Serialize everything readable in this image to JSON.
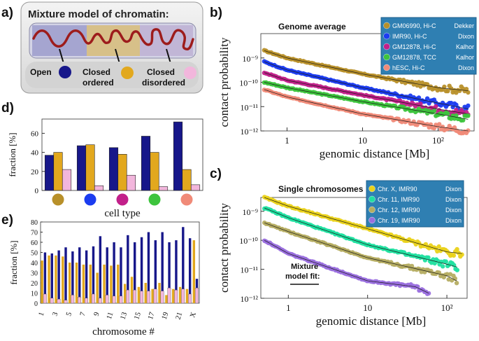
{
  "panels": {
    "a": {
      "letter": "a)",
      "title": "Mixture model of chromatin:",
      "states": [
        {
          "label": "Open",
          "color": "#17178a"
        },
        {
          "label": "Closed\nordered",
          "color": "#e2a81e"
        },
        {
          "label": "Closed\ndisordered",
          "color": "#f2b6dc"
        }
      ]
    },
    "b": {
      "letter": "b)",
      "title": "Genome average",
      "legend": [
        {
          "name": "GM06990, Hi-C",
          "lab": "Dekker",
          "color": "#b8902a"
        },
        {
          "name": "IMR90, Hi-C",
          "lab": "Dixon",
          "color": "#1b3cf0"
        },
        {
          "name": "GM12878, Hi-C",
          "lab": "Kalhor",
          "color": "#c2208a"
        },
        {
          "name": "GM12878, TCC",
          "lab": "Kalhor",
          "color": "#3dc43d"
        },
        {
          "name": "hESC, Hi-C",
          "lab": "Dixon",
          "color": "#f08a78"
        }
      ]
    },
    "c": {
      "letter": "c)",
      "title": "Single chromosomes",
      "fit_label": "Mixture\nmodel fit:",
      "legend": [
        {
          "name": "Chr. X,   IMR90",
          "lab": "Dixon",
          "color": "#ead21a"
        },
        {
          "name": "Chr. 11,  IMR90",
          "lab": "Dixon",
          "color": "#20e0a0"
        },
        {
          "name": "Chr. 12,  IMR90",
          "lab": "Dixon",
          "color": "#b5ad62"
        },
        {
          "name": "Chr. 19,  IMR90",
          "lab": "Dixon",
          "color": "#9a6fde"
        }
      ]
    },
    "d": {
      "letter": "d)"
    },
    "e": {
      "letter": "e)"
    }
  },
  "chart_data": [
    {
      "id": "d",
      "type": "bar",
      "categories": [
        "GM06990",
        "IMR90",
        "GM12878 Hi-C",
        "GM12878 TCC",
        "hESC"
      ],
      "category_marker_colors": [
        "#b8902a",
        "#1b3cf0",
        "#c2208a",
        "#3dc43d",
        "#f08a78"
      ],
      "series": [
        {
          "values": [
            37,
            47,
            45,
            57,
            72
          ],
          "color": "#17178a"
        },
        {
          "values": [
            40,
            48,
            38,
            40,
            22
          ],
          "color": "#e2a81e"
        },
        {
          "values": [
            22,
            5,
            16,
            4,
            6
          ],
          "color": "#f2b6dc"
        }
      ],
      "xlabel": "cell type",
      "ylabel": "fraction [%]",
      "ylim": [
        0,
        75
      ],
      "yticks": [
        "0",
        "20",
        "40",
        "60"
      ]
    },
    {
      "id": "e",
      "type": "bar",
      "categories": [
        "1",
        "2",
        "3",
        "4",
        "5",
        "6",
        "7",
        "8",
        "9",
        "10",
        "11",
        "12",
        "13",
        "14",
        "15",
        "16",
        "17",
        "18",
        "19",
        "20",
        "21",
        "22",
        "X"
      ],
      "tick_labels": [
        "1",
        "3",
        "5",
        "7",
        "9",
        "11",
        "13",
        "15",
        "17",
        "19",
        "21",
        "X"
      ],
      "series": [
        {
          "values": [
            50,
            49,
            52,
            55,
            51,
            55,
            52,
            56,
            66,
            55,
            60,
            55,
            67,
            60,
            65,
            70,
            62,
            70,
            60,
            62,
            75,
            64,
            24
          ],
          "color": "#17178a"
        },
        {
          "values": [
            42,
            47,
            47,
            46,
            40,
            40,
            38,
            38,
            30,
            38,
            37,
            38,
            19,
            26,
            16,
            20,
            14,
            20,
            8,
            14,
            16,
            14,
            62
          ],
          "color": "#e2a81e"
        },
        {
          "values": [
            9,
            5,
            4,
            3,
            8,
            6,
            5,
            9,
            5,
            8,
            7,
            7,
            13,
            13,
            12,
            12,
            14,
            12,
            15,
            13,
            14,
            9,
            15
          ],
          "color": "#f2b6dc"
        }
      ],
      "xlabel": "chromosome #",
      "ylabel": "fraction [%]",
      "ylim": [
        0,
        80
      ],
      "yticks": [
        "0",
        "10",
        "20",
        "30",
        "40",
        "50",
        "60",
        "70",
        "80"
      ]
    },
    {
      "id": "b",
      "type": "scatter",
      "scale": "log-log",
      "xlabel": "genomic distance [Mb]",
      "ylabel": "contact probability",
      "xlim": [
        0.45,
        300
      ],
      "ylim": [
        1e-12,
        1e-08
      ],
      "xticks": [
        {
          "v": 1,
          "t": "1"
        },
        {
          "v": 10,
          "t": "10"
        },
        {
          "v": 100,
          "t": "10²"
        }
      ],
      "yticks": [
        {
          "v": 1e-09,
          "t": "10⁻⁹"
        },
        {
          "v": 1e-10,
          "t": "10⁻¹⁰"
        },
        {
          "v": 1e-11,
          "t": "10⁻¹¹"
        },
        {
          "v": 1e-12,
          "t": "10⁻¹²"
        }
      ],
      "series": [
        {
          "name": "GM06990, Hi-C",
          "color": "#b8902a",
          "points": [
            [
              0.5,
              2e-09
            ],
            [
              1,
              1e-09
            ],
            [
              10,
              2.2e-10
            ],
            [
              100,
              6e-11
            ],
            [
              250,
              4.5e-11
            ]
          ]
        },
        {
          "name": "IMR90, Hi-C",
          "color": "#1b3cf0",
          "points": [
            [
              0.5,
              7e-10
            ],
            [
              1,
              3.2e-10
            ],
            [
              10,
              6e-11
            ],
            [
              100,
              1.4e-11
            ],
            [
              250,
              8e-12
            ]
          ]
        },
        {
          "name": "GM12878, Hi-C",
          "color": "#c2208a",
          "points": [
            [
              0.5,
              2.5e-10
            ],
            [
              1,
              1.2e-10
            ],
            [
              10,
              3e-11
            ],
            [
              100,
              8e-12
            ],
            [
              250,
              5e-12
            ]
          ]
        },
        {
          "name": "GM12878, TCC",
          "color": "#3dc43d",
          "points": [
            [
              0.5,
              1e-10
            ],
            [
              1,
              6e-11
            ],
            [
              10,
              1.6e-11
            ],
            [
              100,
              5e-12
            ],
            [
              250,
              3e-12
            ]
          ]
        },
        {
          "name": "hESC, Hi-C",
          "color": "#f08a78",
          "points": [
            [
              0.5,
              5e-11
            ],
            [
              1,
              2.5e-11
            ],
            [
              10,
              5e-12
            ],
            [
              100,
              1.5e-12
            ],
            [
              250,
              1e-12
            ]
          ]
        }
      ]
    },
    {
      "id": "c",
      "type": "scatter",
      "scale": "log-log",
      "xlabel": "genomic distance [Mb]",
      "ylabel": "contact probability",
      "xlim": [
        0.45,
        180
      ],
      "ylim": [
        1e-12,
        3e-09
      ],
      "xticks": [
        {
          "v": 1,
          "t": "1"
        },
        {
          "v": 10,
          "t": "10"
        },
        {
          "v": 100,
          "t": "10²"
        }
      ],
      "yticks": [
        {
          "v": 1e-09,
          "t": "10⁻⁹"
        },
        {
          "v": 1e-10,
          "t": "10⁻¹⁰"
        },
        {
          "v": 1e-11,
          "t": "10⁻¹¹"
        },
        {
          "v": 1e-12,
          "t": "10⁻¹²"
        }
      ],
      "series": [
        {
          "name": "Chr. X, IMR90",
          "color": "#ead21a",
          "points": [
            [
              0.5,
              3e-09
            ],
            [
              1,
              1.5e-09
            ],
            [
              10,
              2.5e-10
            ],
            [
              100,
              4e-11
            ],
            [
              155,
              3.5e-11
            ]
          ]
        },
        {
          "name": "Chr. 11, IMR90",
          "color": "#20e0a0",
          "points": [
            [
              0.5,
              1.3e-09
            ],
            [
              1,
              6e-10
            ],
            [
              10,
              7e-11
            ],
            [
              100,
              1.5e-11
            ],
            [
              135,
              1.2e-11
            ]
          ]
        },
        {
          "name": "Chr. 12, IMR90",
          "color": "#b5ad62",
          "points": [
            [
              0.5,
              4e-10
            ],
            [
              1,
              2e-10
            ],
            [
              10,
              2.5e-11
            ],
            [
              100,
              6e-12
            ],
            [
              133,
              4e-12
            ]
          ]
        },
        {
          "name": "Chr. 19, IMR90",
          "color": "#9a6fde",
          "points": [
            [
              0.5,
              1e-10
            ],
            [
              1,
              3.5e-11
            ],
            [
              10,
              4e-12
            ],
            [
              40,
              2.5e-12
            ],
            [
              59,
              1.5e-12
            ]
          ]
        }
      ]
    }
  ]
}
